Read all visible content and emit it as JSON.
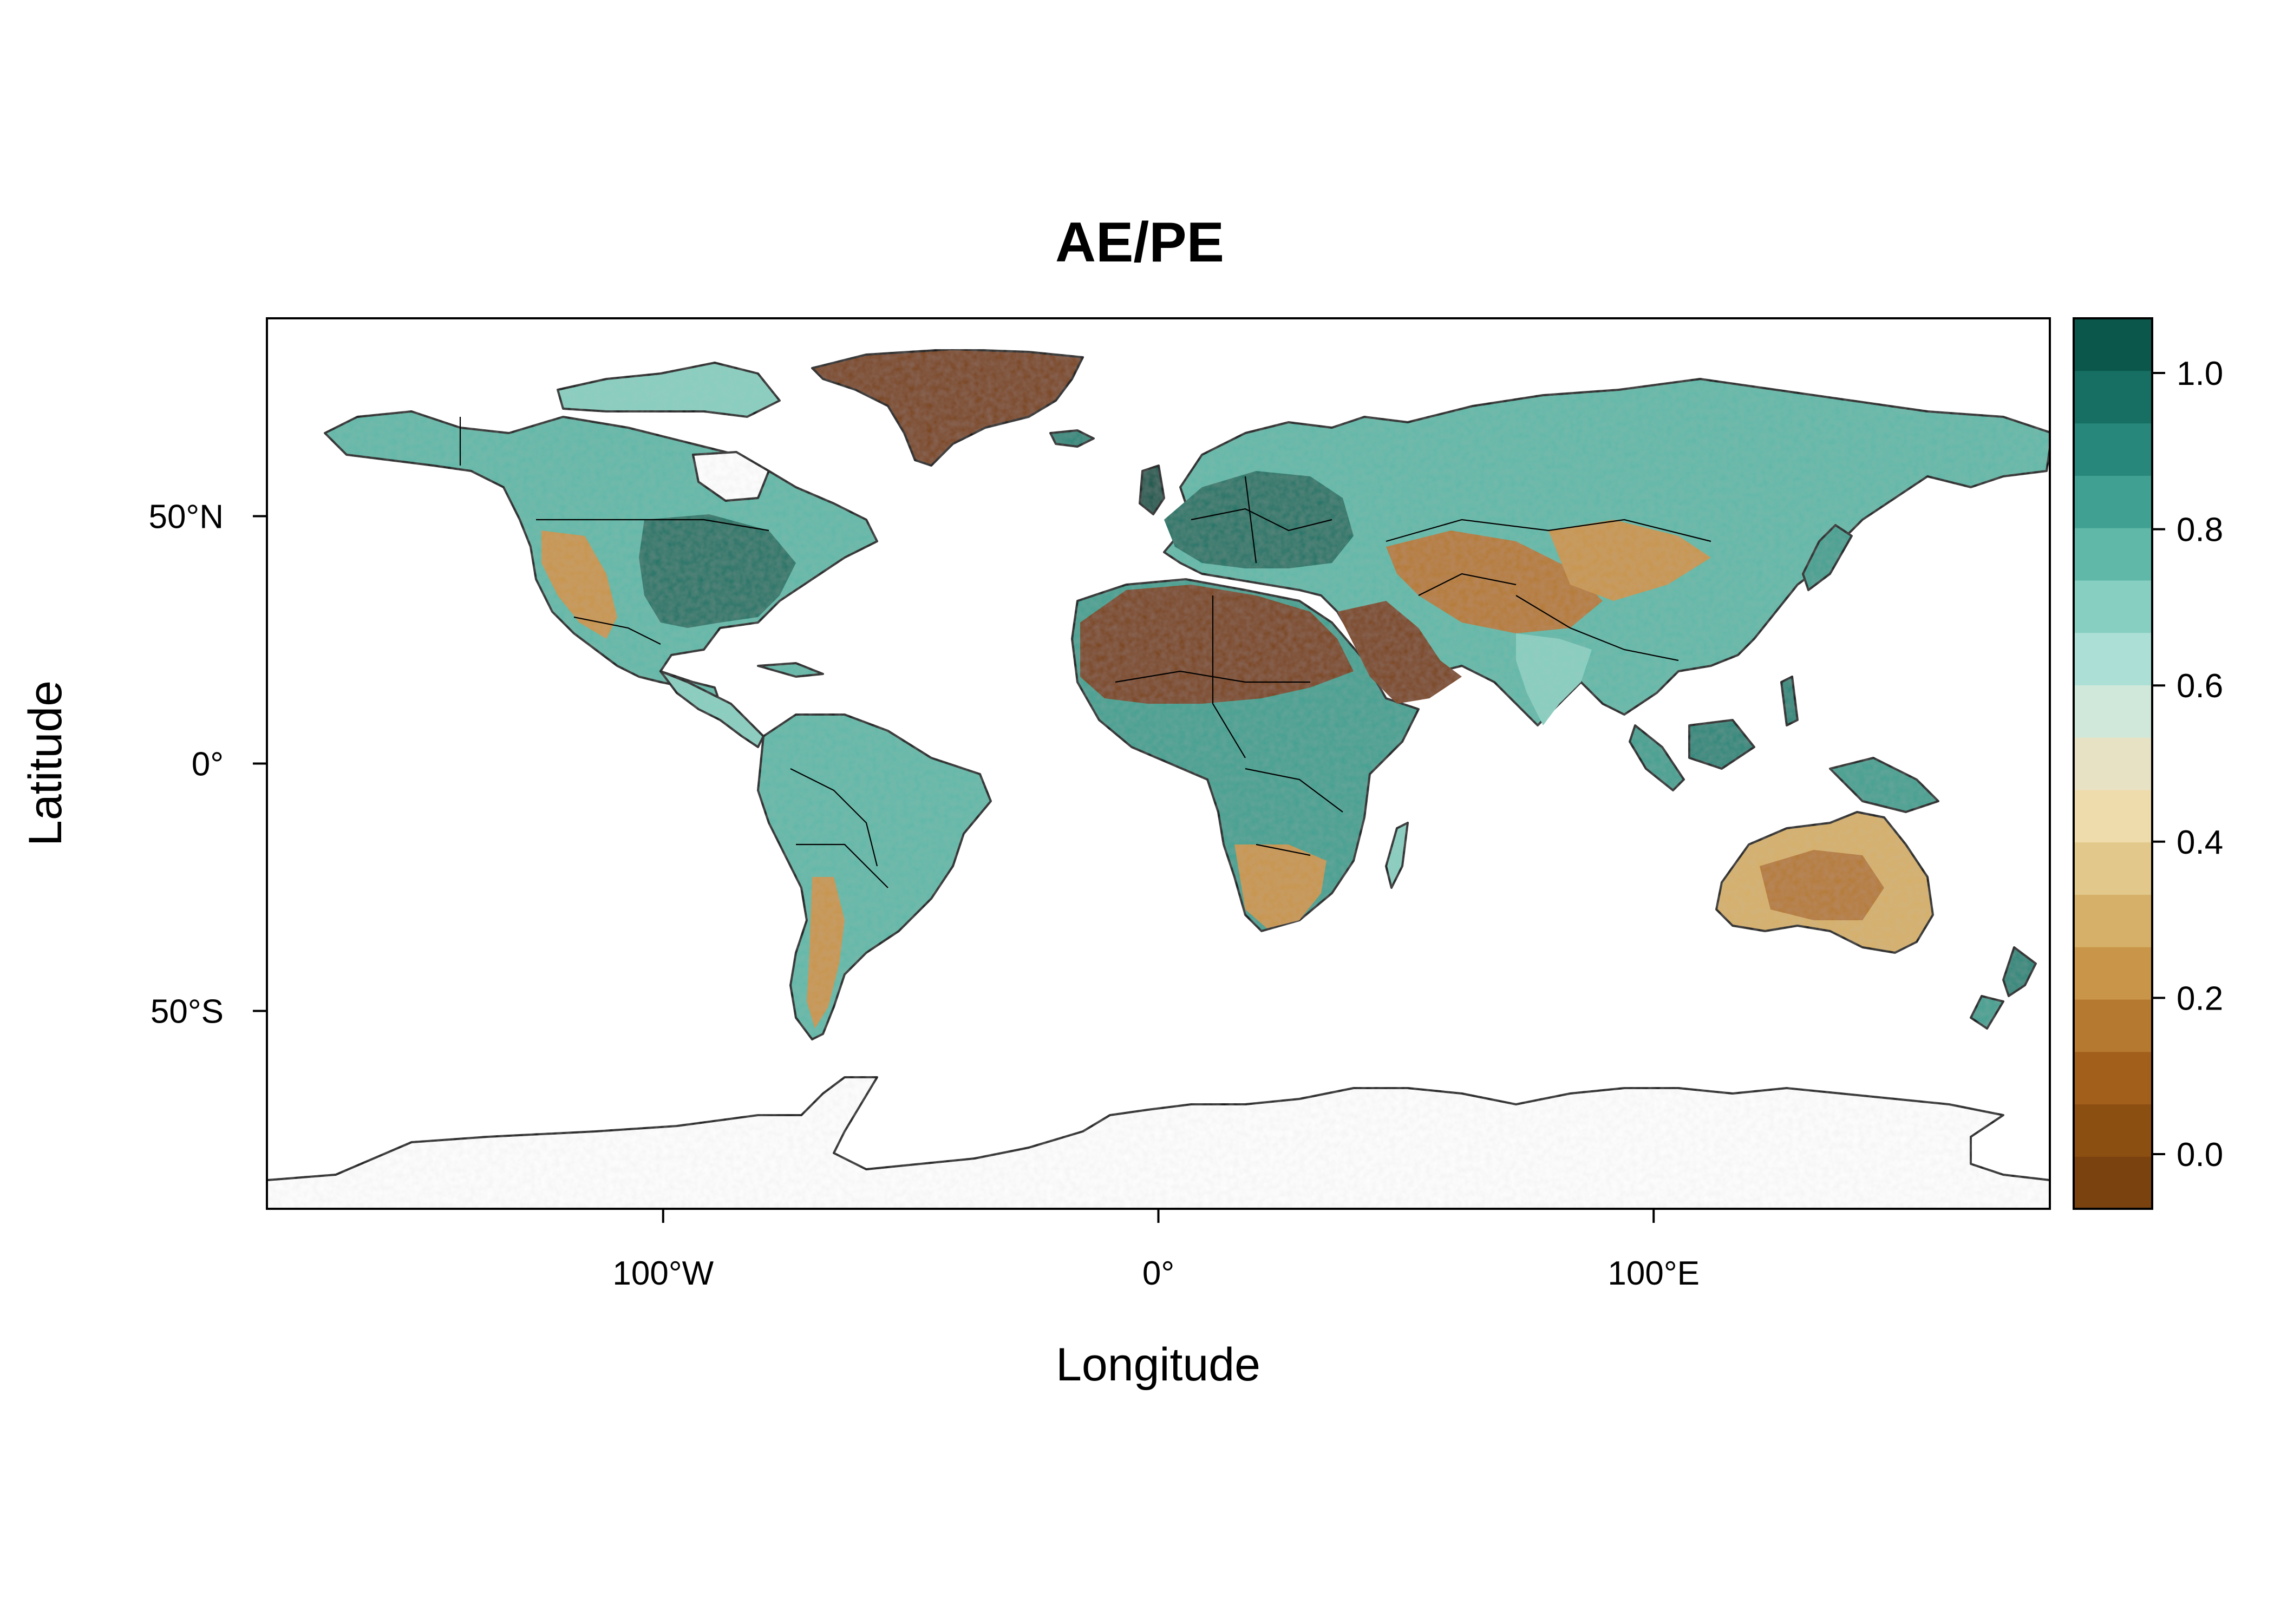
{
  "title": "AE/PE",
  "x_axis": {
    "label": "Longitude",
    "range": [
      -180,
      180
    ],
    "ticks": [
      {
        "value": -100,
        "label": "100°W"
      },
      {
        "value": 0,
        "label": "0°"
      },
      {
        "value": 100,
        "label": "100°E"
      }
    ]
  },
  "y_axis": {
    "label": "Latitude",
    "range": [
      -90,
      90
    ],
    "ticks": [
      {
        "value": 50,
        "label": "50°N"
      },
      {
        "value": 0,
        "label": "0°"
      },
      {
        "value": -50,
        "label": "50°S"
      }
    ]
  },
  "colorbar": {
    "range": [
      -0.07,
      1.07
    ],
    "ticks": [
      {
        "value": 0.0,
        "label": "0.0"
      },
      {
        "value": 0.2,
        "label": "0.2"
      },
      {
        "value": 0.4,
        "label": "0.4"
      },
      {
        "value": 0.6,
        "label": "0.6"
      },
      {
        "value": 0.8,
        "label": "0.8"
      },
      {
        "value": 1.0,
        "label": "1.0"
      }
    ],
    "colors": [
      "#7a420f",
      "#8c4f12",
      "#a25f1c",
      "#b5792f",
      "#c89549",
      "#d6b068",
      "#e2c88a",
      "#efdcac",
      "#e8e2c4",
      "#cfe8d9",
      "#acdfd5",
      "#87cfc1",
      "#5fb8a8",
      "#40a091",
      "#26877a",
      "#176f63",
      "#0b574c"
    ]
  },
  "chart_data": {
    "type": "heatmap",
    "title": "AE/PE",
    "xlabel": "Longitude",
    "ylabel": "Latitude",
    "xlim": [
      -180,
      180
    ],
    "ylim": [
      -90,
      90
    ],
    "color_scale_range": [
      0.0,
      1.0
    ],
    "region_values": [
      {
        "region": "Greenland",
        "value": 0.0
      },
      {
        "region": "Sahara",
        "value": 0.05
      },
      {
        "region": "Arabian Peninsula",
        "value": 0.05
      },
      {
        "region": "Eastern United States",
        "value": 0.95
      },
      {
        "region": "Western United States",
        "value": 0.3
      },
      {
        "region": "Canada",
        "value": 0.7
      },
      {
        "region": "Europe",
        "value": 0.9
      },
      {
        "region": "Siberia",
        "value": 0.72
      },
      {
        "region": "Central Asia",
        "value": 0.3
      },
      {
        "region": "Tibetan Plateau / Mongolia",
        "value": 0.3
      },
      {
        "region": "China",
        "value": 0.85
      },
      {
        "region": "India",
        "value": 0.6
      },
      {
        "region": "Southeast Asia",
        "value": 0.85
      },
      {
        "region": "Amazon",
        "value": 0.8
      },
      {
        "region": "Patagonia",
        "value": 0.3
      },
      {
        "region": "Central Africa",
        "value": 0.9
      },
      {
        "region": "Southern Africa",
        "value": 0.25
      },
      {
        "region": "Australia interior",
        "value": 0.25
      },
      {
        "region": "Antarctica",
        "value": null
      }
    ]
  }
}
